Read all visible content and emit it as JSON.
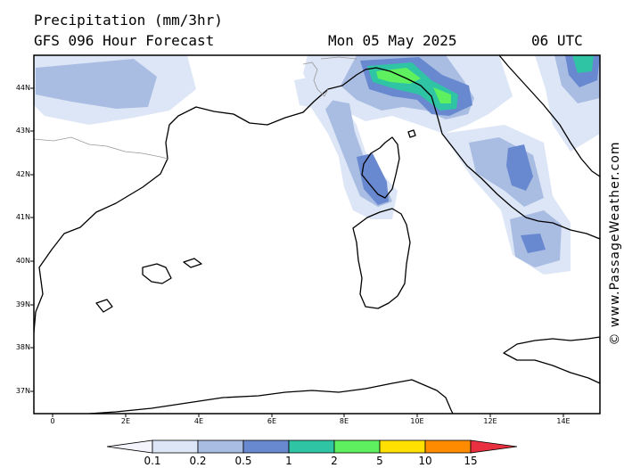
{
  "header": {
    "title": "Precipitation (mm/3hr)",
    "subtitle": "GFS 096 Hour Forecast",
    "date": "Mon 05 May 2025",
    "time": "06 UTC"
  },
  "credit": "© www.PassageWeather.com",
  "axes": {
    "lat_labels": [
      "44N",
      "43N",
      "42N",
      "41N",
      "40N",
      "39N",
      "38N",
      "37N"
    ],
    "lon_labels": [
      "0",
      "2E",
      "4E",
      "6E",
      "8E",
      "10E",
      "12E",
      "14E"
    ]
  },
  "legend": {
    "labels": [
      "0.1",
      "0.2",
      "0.5",
      "1",
      "2",
      "5",
      "10",
      "15"
    ],
    "colors": [
      "#f4f4fc",
      "#dde6f6",
      "#a9bce2",
      "#6888d0",
      "#2ec4a4",
      "#5ef05e",
      "#ffe000",
      "#ff8c00",
      "#e83040"
    ]
  },
  "colors": {
    "ocean": "#ffffff",
    "land": "#ffffff",
    "coast": "#000000",
    "border": "#999999"
  }
}
